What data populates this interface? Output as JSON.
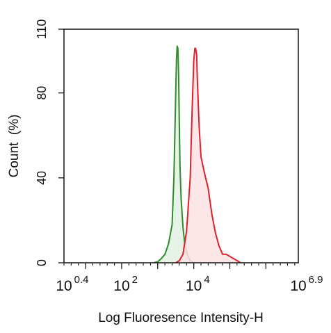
{
  "chart_data": {
    "type": "area",
    "title": "",
    "xlabel": "Log Fluoresence Intensity-H",
    "ylabel": "Count  (%)",
    "x_scale": "log10",
    "xlim_log10": [
      0.4,
      6.9
    ],
    "ylim": [
      0,
      110
    ],
    "y_ticks": [
      0,
      40,
      80,
      110
    ],
    "x_tick_labels": [
      {
        "base": "10",
        "exp": "0.4",
        "log10": 0.4
      },
      {
        "base": "10",
        "exp": "2",
        "log10": 2
      },
      {
        "base": "10",
        "exp": "4",
        "log10": 4
      },
      {
        "base": "10",
        "exp": "6.9",
        "log10": 6.9
      }
    ],
    "grid": false,
    "legend": "none",
    "series": [
      {
        "color": "#2e8b2e",
        "fill": "#e3f1e3",
        "log10_x": [
          2.88,
          3.0,
          3.1,
          3.2,
          3.3,
          3.4,
          3.45,
          3.5,
          3.52,
          3.54,
          3.56,
          3.58,
          3.6,
          3.62,
          3.65,
          3.7,
          3.75,
          3.82,
          3.9,
          4.0
        ],
        "values": [
          0,
          0.5,
          2,
          4,
          9,
          18,
          40,
          80,
          96,
          102,
          101,
          88,
          65,
          45,
          30,
          17,
          9,
          4,
          1,
          0
        ]
      },
      {
        "color": "#e0202a",
        "fill": "#fde2e4",
        "log10_x": [
          3.5,
          3.6,
          3.7,
          3.8,
          3.9,
          3.95,
          4.0,
          4.03,
          4.05,
          4.08,
          4.1,
          4.15,
          4.2,
          4.25,
          4.3,
          4.4,
          4.5,
          4.6,
          4.7,
          4.8,
          4.9,
          5.0,
          5.1,
          5.2,
          5.3
        ],
        "values": [
          0,
          1,
          4,
          15,
          40,
          70,
          95,
          101,
          101,
          98,
          86,
          64,
          50,
          46,
          42,
          35,
          23,
          14,
          8,
          4,
          4,
          3,
          2,
          1,
          0
        ]
      }
    ]
  }
}
